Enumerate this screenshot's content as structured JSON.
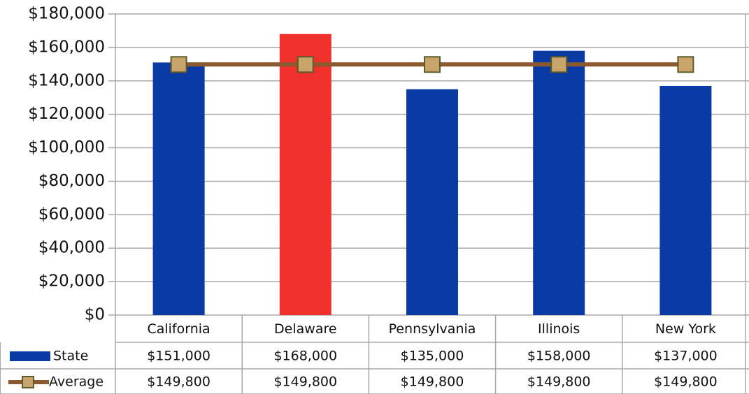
{
  "chart_data": {
    "type": "bar_line",
    "categories": [
      "California",
      "Delaware",
      "Pennsylvania",
      "Illinois",
      "New York"
    ],
    "series": [
      {
        "name": "State",
        "type": "bar",
        "color": "#0a3aa3",
        "colors": [
          "#0a3aa3",
          "#f0302a",
          "#0a3aa3",
          "#0a3aa3",
          "#0a3aa3"
        ],
        "values": [
          151000,
          168000,
          135000,
          158000,
          137000
        ],
        "value_labels": [
          "$151,000",
          "$168,000",
          "$135,000",
          "$158,000",
          "$137,000"
        ]
      },
      {
        "name": "Average",
        "type": "line",
        "color": "#8a5a2e",
        "marker_color": "#c9a56c",
        "values": [
          149800,
          149800,
          149800,
          149800,
          149800
        ],
        "value_labels": [
          "$149,800",
          "$149,800",
          "$149,800",
          "$149,800",
          "$149,800"
        ]
      }
    ],
    "ylim": [
      0,
      180000
    ],
    "yticks": [
      {
        "value": 0,
        "label": "$0"
      },
      {
        "value": 20000,
        "label": "$20,000"
      },
      {
        "value": 40000,
        "label": "$40,000"
      },
      {
        "value": 60000,
        "label": "$60,000"
      },
      {
        "value": 80000,
        "label": "$80,000"
      },
      {
        "value": 100000,
        "label": "$100,000"
      },
      {
        "value": 120000,
        "label": "$120,000"
      },
      {
        "value": 140000,
        "label": "$140,000"
      },
      {
        "value": 160000,
        "label": "$160,000"
      },
      {
        "value": 180000,
        "label": "$180,000"
      }
    ],
    "grid": true,
    "data_table": true
  }
}
